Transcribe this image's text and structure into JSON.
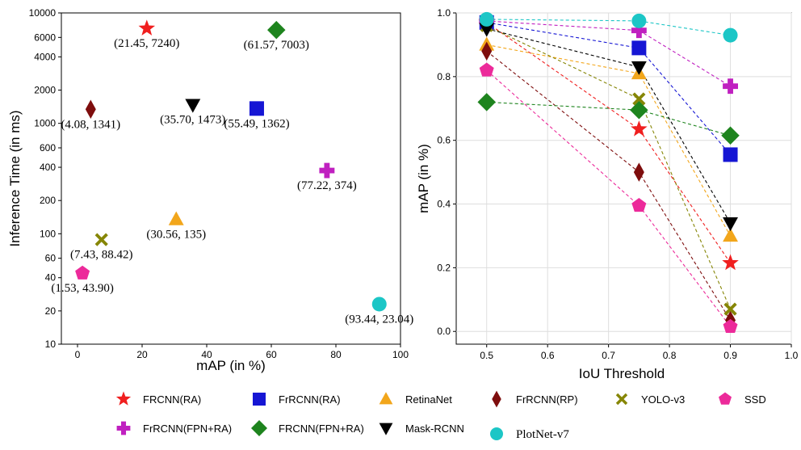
{
  "chart_data": [
    {
      "type": "scatter",
      "title": "",
      "xlabel": "mAP (in %)",
      "ylabel": "Inference Time (in ms)",
      "xlim": [
        -5,
        100
      ],
      "ylim": [
        10,
        10000
      ],
      "yscale": "log",
      "xticks": [
        0,
        20,
        40,
        60,
        80,
        100
      ],
      "yticks": [
        10,
        20,
        40,
        60,
        100,
        200,
        400,
        600,
        1000,
        2000,
        4000,
        6000,
        10000
      ],
      "points": [
        {
          "model": "FRCNN(RA)",
          "x": 21.45,
          "y": 7240,
          "label": "(21.45, 7240)"
        },
        {
          "model": "FRCNN(FPN+RA)",
          "x": 61.57,
          "y": 7003,
          "label": "(61.57, 7003)"
        },
        {
          "model": "FrRCNN(RP)",
          "x": 4.08,
          "y": 1341,
          "label": "(4.08, 1341)"
        },
        {
          "model": "Mask-RCNN",
          "x": 35.7,
          "y": 1473,
          "label": "(35.70, 1473)"
        },
        {
          "model": "FrRCNN(RA)",
          "x": 55.49,
          "y": 1362,
          "label": "(55.49, 1362)"
        },
        {
          "model": "FrRCNN(FPN+RA)",
          "x": 77.22,
          "y": 374,
          "label": "(77.22, 374)"
        },
        {
          "model": "RetinaNet",
          "x": 30.56,
          "y": 135,
          "label": "(30.56, 135)"
        },
        {
          "model": "YOLO-v3",
          "x": 7.43,
          "y": 88.42,
          "label": "(7.43, 88.42)"
        },
        {
          "model": "SSD",
          "x": 1.53,
          "y": 43.9,
          "label": "(1.53, 43.90)"
        },
        {
          "model": "PlotNet-v7",
          "x": 93.44,
          "y": 23.04,
          "label": "(93.44, 23.04)"
        }
      ]
    },
    {
      "type": "line",
      "title": "",
      "xlabel": "IoU Threshold",
      "ylabel": "mAP (in %)",
      "xlim": [
        0.45,
        1.0
      ],
      "ylim": [
        -0.04,
        1.0
      ],
      "xticks": [
        0.5,
        0.6,
        0.7,
        0.8,
        0.9,
        1.0
      ],
      "yticks": [
        0.0,
        0.2,
        0.4,
        0.6,
        0.8,
        1.0
      ],
      "x": [
        0.5,
        0.75,
        0.9
      ],
      "series": [
        {
          "name": "FRCNN(RA)",
          "values": [
            0.97,
            0.635,
            0.215
          ]
        },
        {
          "name": "FrRCNN(RA)",
          "values": [
            0.97,
            0.89,
            0.555
          ]
        },
        {
          "name": "RetinaNet",
          "values": [
            0.9,
            0.81,
            0.3
          ]
        },
        {
          "name": "FrRCNN(RP)",
          "values": [
            0.88,
            0.5,
            0.035
          ]
        },
        {
          "name": "YOLO-v3",
          "values": [
            0.96,
            0.73,
            0.07
          ]
        },
        {
          "name": "SSD",
          "values": [
            0.82,
            0.395,
            0.015
          ]
        },
        {
          "name": "FrRCNN(FPN+RA)",
          "values": [
            0.975,
            0.945,
            0.77
          ]
        },
        {
          "name": "FRCNN(FPN+RA)",
          "values": [
            0.72,
            0.695,
            0.615
          ]
        },
        {
          "name": "Mask-RCNN",
          "values": [
            0.95,
            0.83,
            0.34
          ]
        },
        {
          "name": "PlotNet-v7",
          "values": [
            0.98,
            0.975,
            0.93
          ]
        }
      ]
    }
  ],
  "styles": {
    "FRCNN(RA)": {
      "color": "#f01f1f",
      "marker": "star"
    },
    "FrRCNN(RA)": {
      "color": "#1616d4",
      "marker": "square"
    },
    "RetinaNet": {
      "color": "#f2a61b",
      "marker": "triangle"
    },
    "FrRCNN(RP)": {
      "color": "#7e0d0d",
      "marker": "thin-diamond"
    },
    "YOLO-v3": {
      "color": "#868606",
      "marker": "x"
    },
    "SSD": {
      "color": "#ec2a9a",
      "marker": "pentagon"
    },
    "FrRCNN(FPN+RA)": {
      "color": "#c020c0",
      "marker": "plus"
    },
    "FRCNN(FPN+RA)": {
      "color": "#1e841e",
      "marker": "diamond"
    },
    "Mask-RCNN": {
      "color": "#000000",
      "marker": "triangle-down"
    },
    "PlotNet-v7": {
      "color": "#1cc6c6",
      "marker": "circle"
    }
  },
  "legend": {
    "placement": "bottom",
    "row1": [
      "FRCNN(RA)",
      "FrRCNN(RA)",
      "RetinaNet",
      "FrRCNN(RP)",
      "YOLO-v3",
      "SSD"
    ],
    "row2": [
      "FrRCNN(FPN+RA)",
      "FRCNN(FPN+RA)",
      "Mask-RCNN",
      "PlotNet-v7"
    ]
  }
}
